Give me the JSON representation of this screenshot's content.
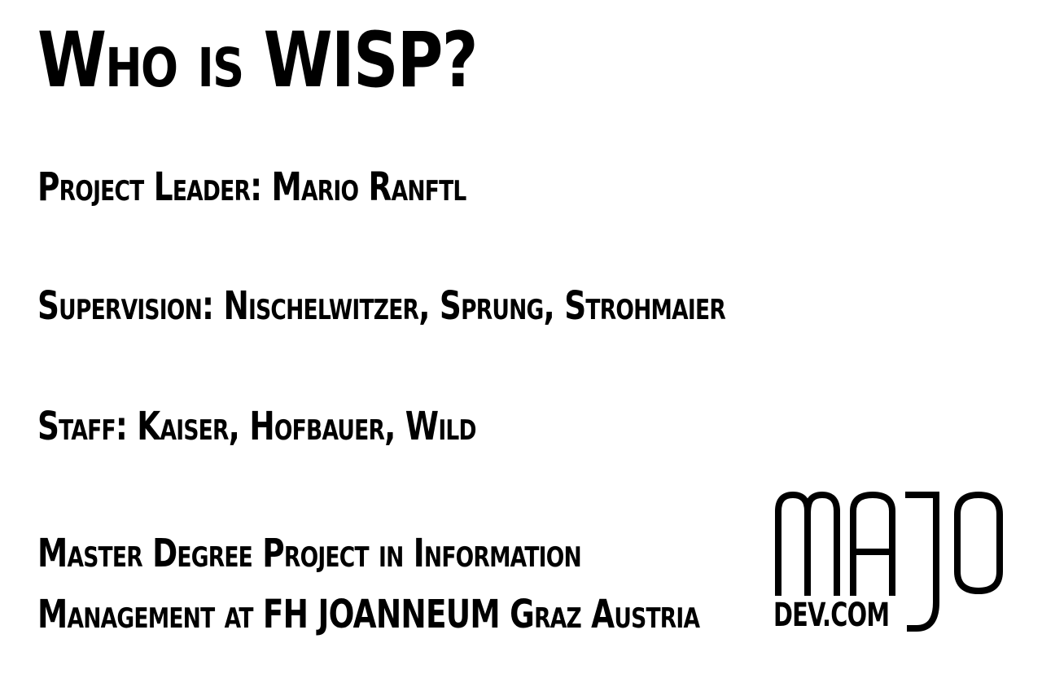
{
  "slide": {
    "title": "Who is WISP?",
    "lines": [
      "Project Leader: Mario Ranftl",
      "Supervision: Nischelwitzer, Sprung, Strohmaier",
      "Staff: Kaiser, Hofbauer, Wild",
      "Master Degree Project in Information",
      "Management at FH JOANNEUM Graz Austria"
    ]
  },
  "logo": {
    "letters": "MAJO",
    "domain": "DEV.COM"
  },
  "colors": {
    "background": "#ffffff",
    "text": "#000000"
  }
}
